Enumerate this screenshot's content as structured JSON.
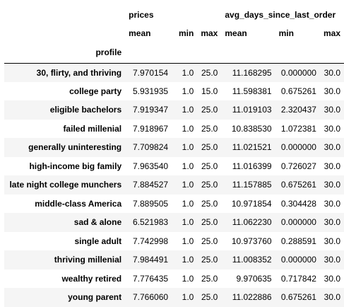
{
  "table": {
    "column_groups": [
      "prices",
      "avg_days_since_last_order"
    ],
    "sub_columns": [
      "mean",
      "min",
      "max",
      "mean",
      "min",
      "max"
    ],
    "index_name": "profile",
    "rows": [
      {
        "label": "30, flirty, and thriving",
        "cells": [
          "7.970154",
          "1.0",
          "25.0",
          "11.168295",
          "0.000000",
          "30.0"
        ]
      },
      {
        "label": "college party",
        "cells": [
          "5.931935",
          "1.0",
          "15.0",
          "11.598381",
          "0.675261",
          "30.0"
        ]
      },
      {
        "label": "eligible bachelors",
        "cells": [
          "7.919347",
          "1.0",
          "25.0",
          "11.019103",
          "2.320437",
          "30.0"
        ]
      },
      {
        "label": "failed millenial",
        "cells": [
          "7.918967",
          "1.0",
          "25.0",
          "10.838530",
          "1.072381",
          "30.0"
        ]
      },
      {
        "label": "generally uninteresting",
        "cells": [
          "7.709824",
          "1.0",
          "25.0",
          "11.021521",
          "0.000000",
          "30.0"
        ]
      },
      {
        "label": "high-income big family",
        "cells": [
          "7.963540",
          "1.0",
          "25.0",
          "11.016399",
          "0.726027",
          "30.0"
        ]
      },
      {
        "label": "late night college munchers",
        "cells": [
          "7.884527",
          "1.0",
          "25.0",
          "11.157885",
          "0.675261",
          "30.0"
        ]
      },
      {
        "label": "middle-class America",
        "cells": [
          "7.889505",
          "1.0",
          "25.0",
          "10.971854",
          "0.304428",
          "30.0"
        ]
      },
      {
        "label": "sad & alone",
        "cells": [
          "6.521983",
          "1.0",
          "25.0",
          "11.062230",
          "0.000000",
          "30.0"
        ]
      },
      {
        "label": "single adult",
        "cells": [
          "7.742998",
          "1.0",
          "25.0",
          "10.973760",
          "0.288591",
          "30.0"
        ]
      },
      {
        "label": "thriving millenial",
        "cells": [
          "7.984491",
          "1.0",
          "25.0",
          "11.008352",
          "0.000000",
          "30.0"
        ]
      },
      {
        "label": "wealthy retired",
        "cells": [
          "7.776435",
          "1.0",
          "25.0",
          "9.970635",
          "0.717842",
          "30.0"
        ]
      },
      {
        "label": "young parent",
        "cells": [
          "7.766060",
          "1.0",
          "25.0",
          "11.022886",
          "0.675261",
          "30.0"
        ]
      }
    ]
  }
}
